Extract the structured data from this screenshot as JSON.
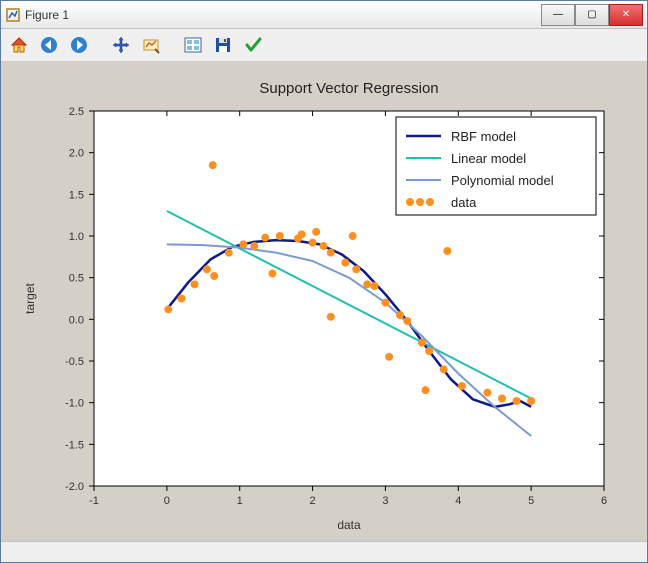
{
  "window": {
    "title": "Figure 1",
    "controls": {
      "minimize": "—",
      "maximize": "▢",
      "close": "✕"
    }
  },
  "toolbar": {
    "items": [
      {
        "name": "home-icon"
      },
      {
        "name": "back-icon"
      },
      {
        "name": "forward-icon"
      },
      {
        "name": "pan-icon"
      },
      {
        "name": "zoom-icon"
      },
      {
        "name": "configure-icon"
      },
      {
        "name": "save-icon"
      },
      {
        "name": "check-icon"
      }
    ]
  },
  "chart": {
    "type": "line+scatter",
    "title": "Support Vector Regression",
    "title_fontsize": 15,
    "xlabel": "data",
    "ylabel": "target",
    "label_fontsize": 12,
    "background_color": "#d4d0c8",
    "plot_bg": "#ffffff",
    "axis_color": "#000000",
    "xlim": [
      -1,
      6
    ],
    "ylim": [
      -2.0,
      2.5
    ],
    "xticks": [
      -1,
      0,
      1,
      2,
      3,
      4,
      5,
      6
    ],
    "yticks": [
      -2.0,
      -1.5,
      -1.0,
      -0.5,
      0.0,
      0.5,
      1.0,
      1.5,
      2.0,
      2.5
    ],
    "xtick_labels": [
      "-1",
      "0",
      "1",
      "2",
      "3",
      "4",
      "5",
      "6"
    ],
    "ytick_labels": [
      "-2.0",
      "-1.5",
      "-1.0",
      "-0.5",
      "0.0",
      "0.5",
      "1.0",
      "1.5",
      "2.0",
      "2.5"
    ],
    "series": [
      {
        "name": "RBF model",
        "type": "line",
        "color": "#0a1a8a",
        "width": 2.5,
        "points": [
          [
            0.0,
            0.12
          ],
          [
            0.3,
            0.45
          ],
          [
            0.6,
            0.72
          ],
          [
            0.9,
            0.87
          ],
          [
            1.2,
            0.93
          ],
          [
            1.5,
            0.95
          ],
          [
            1.8,
            0.94
          ],
          [
            2.1,
            0.9
          ],
          [
            2.4,
            0.78
          ],
          [
            2.7,
            0.58
          ],
          [
            3.0,
            0.3
          ],
          [
            3.3,
            -0.02
          ],
          [
            3.6,
            -0.38
          ],
          [
            3.9,
            -0.72
          ],
          [
            4.2,
            -0.96
          ],
          [
            4.5,
            -1.05
          ],
          [
            4.7,
            -1.02
          ],
          [
            4.85,
            -0.98
          ],
          [
            5.0,
            -1.05
          ]
        ]
      },
      {
        "name": "Linear model",
        "type": "line",
        "color": "#20c0b0",
        "width": 2.0,
        "points": [
          [
            0.0,
            1.3
          ],
          [
            5.0,
            -0.95
          ]
        ]
      },
      {
        "name": "Polynomial model",
        "type": "line",
        "color": "#7a9ad0",
        "width": 2.0,
        "points": [
          [
            0.0,
            0.9
          ],
          [
            0.5,
            0.89
          ],
          [
            1.0,
            0.86
          ],
          [
            1.5,
            0.8
          ],
          [
            2.0,
            0.7
          ],
          [
            2.5,
            0.5
          ],
          [
            3.0,
            0.2
          ],
          [
            3.5,
            -0.2
          ],
          [
            4.0,
            -0.65
          ],
          [
            4.5,
            -1.05
          ],
          [
            5.0,
            -1.4
          ]
        ]
      },
      {
        "name": "data",
        "type": "scatter",
        "marker_color": "#ff9020",
        "marker_size": 4,
        "points": [
          [
            0.02,
            0.12
          ],
          [
            0.2,
            0.25
          ],
          [
            0.38,
            0.42
          ],
          [
            0.55,
            0.6
          ],
          [
            0.65,
            0.52
          ],
          [
            0.63,
            1.85
          ],
          [
            0.85,
            0.8
          ],
          [
            1.05,
            0.9
          ],
          [
            1.2,
            0.88
          ],
          [
            1.35,
            0.98
          ],
          [
            1.45,
            0.55
          ],
          [
            1.55,
            1.0
          ],
          [
            1.8,
            0.97
          ],
          [
            1.85,
            1.02
          ],
          [
            2.0,
            0.92
          ],
          [
            2.05,
            1.05
          ],
          [
            2.15,
            0.88
          ],
          [
            2.25,
            0.03
          ],
          [
            2.25,
            0.8
          ],
          [
            2.45,
            0.68
          ],
          [
            2.55,
            1.0
          ],
          [
            2.6,
            0.6
          ],
          [
            2.75,
            0.42
          ],
          [
            2.85,
            0.4
          ],
          [
            3.0,
            0.2
          ],
          [
            3.05,
            -0.45
          ],
          [
            3.2,
            0.05
          ],
          [
            3.3,
            -0.02
          ],
          [
            3.5,
            -0.28
          ],
          [
            3.55,
            -0.85
          ],
          [
            3.6,
            -0.38
          ],
          [
            3.8,
            -0.6
          ],
          [
            3.85,
            0.82
          ],
          [
            4.05,
            -0.8
          ],
          [
            4.4,
            -0.88
          ],
          [
            4.6,
            -0.95
          ],
          [
            4.8,
            -0.98
          ],
          [
            5.0,
            -0.98
          ]
        ]
      }
    ],
    "legend": {
      "position": "upper-right",
      "border_color": "#000000",
      "bg": "#ffffff",
      "items": [
        "RBF model",
        "Linear model",
        "Polynomial model",
        "data"
      ]
    }
  }
}
